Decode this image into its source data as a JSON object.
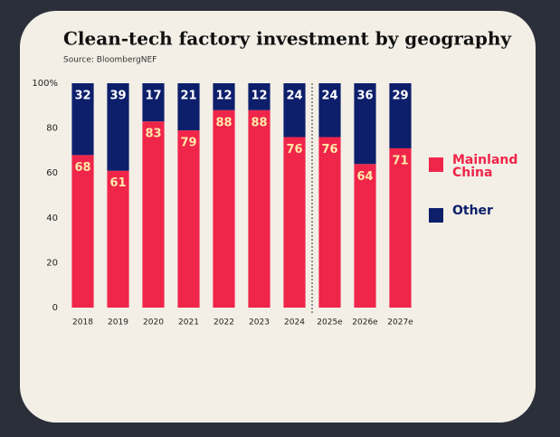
{
  "chart_data": {
    "type": "stacked_bar",
    "title": "Clean-tech factory investment by geography",
    "source": "Source: BloombergNEF",
    "categories": [
      "2018",
      "2019",
      "2020",
      "2021",
      "2022",
      "2023",
      "2024",
      "2025e",
      "2026e",
      "2027e"
    ],
    "series": [
      {
        "name": "Mainland China",
        "color": "#f0254a",
        "values": [
          68,
          61,
          83,
          79,
          88,
          88,
          76,
          76,
          64,
          71
        ]
      },
      {
        "name": "Other",
        "color": "#0d1f6b",
        "values": [
          32,
          39,
          17,
          21,
          12,
          12,
          24,
          24,
          36,
          29
        ]
      }
    ],
    "ylim": [
      0,
      100
    ],
    "yticks": [
      0,
      20,
      40,
      60,
      80,
      {
        "value": 100,
        "label": "100%"
      }
    ]
  }
}
